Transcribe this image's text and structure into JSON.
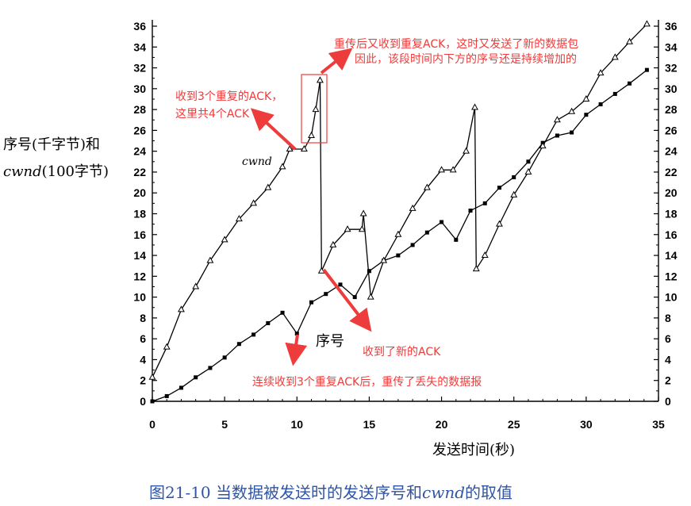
{
  "chart_data": {
    "type": "line",
    "xlabel": "发送时间(秒)",
    "ylabel": [
      "序号(千字节)和",
      "(100字节)"
    ],
    "ylabel_italic_word": "cwnd",
    "xlim": [
      0,
      35
    ],
    "ylim": [
      0,
      36
    ],
    "x_ticks": [
      0,
      5,
      10,
      15,
      20,
      25,
      30,
      35
    ],
    "y_ticks": [
      0,
      2,
      4,
      6,
      8,
      10,
      12,
      14,
      16,
      18,
      20,
      22,
      24,
      26,
      28,
      30,
      32,
      34,
      36
    ],
    "grid": false,
    "right_axis_mirrors_left": true,
    "series": [
      {
        "name": "序号",
        "marker": "square-filled",
        "x": [
          0,
          1,
          2,
          3,
          4,
          5,
          6,
          7,
          8,
          9,
          10,
          11,
          12,
          13,
          14,
          15,
          16,
          17,
          18,
          19,
          20,
          21,
          22,
          23,
          24,
          25,
          26,
          27,
          28,
          29,
          30,
          31,
          32,
          33,
          34.2
        ],
        "y": [
          0,
          0.5,
          1.3,
          2.3,
          3.2,
          4.2,
          5.5,
          6.4,
          7.5,
          8.5,
          6.5,
          9.5,
          10.3,
          11.2,
          10.0,
          12.5,
          13.5,
          14.0,
          15.0,
          16.2,
          17.2,
          15.5,
          18.3,
          19.0,
          20.5,
          21.5,
          23.0,
          24.8,
          25.5,
          25.8,
          27.5,
          28.5,
          29.5,
          30.5,
          31.8
        ]
      },
      {
        "name": "cwnd",
        "marker": "triangle-open",
        "x": [
          0,
          1,
          2,
          3,
          4,
          5,
          6,
          7,
          8,
          9,
          9.5,
          10.5,
          11,
          11.3,
          11.6,
          11.7,
          12.5,
          13.5,
          14.5,
          14.6,
          15.1,
          16,
          17,
          18,
          19,
          20,
          20.8,
          21.7,
          22.3,
          22.4,
          23,
          24,
          25,
          26,
          27,
          28,
          29,
          30,
          31,
          32,
          33,
          34.2
        ],
        "y": [
          2.3,
          5.2,
          8.8,
          11.0,
          13.5,
          15.5,
          17.5,
          19.0,
          20.5,
          22.5,
          24.2,
          24.2,
          25.5,
          28.0,
          30.8,
          12.5,
          15.0,
          16.5,
          16.5,
          18.0,
          10.0,
          13.5,
          16.0,
          18.5,
          20.5,
          22.2,
          22.2,
          24.0,
          28.2,
          12.7,
          14.0,
          17.0,
          19.8,
          22.0,
          24.5,
          27.0,
          27.8,
          29.0,
          31.5,
          33.0,
          34.5,
          36.2
        ]
      }
    ],
    "series_labels": {
      "seq": "序号",
      "cwnd": "cwnd"
    },
    "annotations": [
      "重传后又收到重复ACK，这时又发送了新的数据包",
      "因此，该段时间内下方的序号还是持续增加的",
      "收到3个重复的ACK，",
      "这里共4个ACK",
      "收到了新的ACK",
      "连续收到3个重复ACK后，重传了丢失的数据报"
    ],
    "caption": "图21-10  当数据被发送时的发送序号和",
    "caption_italic": "cwnd",
    "caption_tail": "的取值",
    "colors": {
      "axis": "#000000",
      "annotation": "#ee3b3b",
      "caption": "#2f55a4"
    }
  }
}
